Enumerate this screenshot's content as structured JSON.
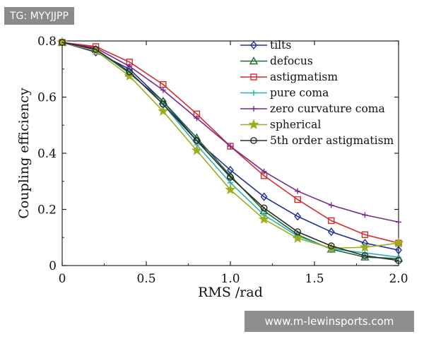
{
  "watermark": {
    "tag": "TG: MYYJJPP"
  },
  "banner": {
    "text": "www.m-lewinsports.com"
  },
  "chart_data": {
    "type": "line",
    "title": "",
    "xlabel": "RMS /rad",
    "ylabel": "Coupling efficiency",
    "xlim": [
      0,
      2.0
    ],
    "ylim": [
      0,
      0.8
    ],
    "xticks": [
      0,
      0.5,
      1.0,
      1.5,
      2.0
    ],
    "xtick_labels": [
      "0",
      "0.5",
      "1.0",
      "1.5",
      "2.0"
    ],
    "yticks": [
      0,
      0.2,
      0.4,
      0.6,
      0.8
    ],
    "ytick_labels": [
      "0",
      "0.2",
      "0.4",
      "0.6",
      "0.8"
    ],
    "grid": false,
    "legend_position": "top-right",
    "x": [
      0,
      0.2,
      0.4,
      0.6,
      0.8,
      1.0,
      1.2,
      1.4,
      1.6,
      1.8,
      2.0
    ],
    "series": [
      {
        "name": "tilts",
        "marker": "diamond",
        "color": "#1f2f9e",
        "values": [
          0.795,
          0.76,
          0.7,
          0.585,
          0.445,
          0.34,
          0.245,
          0.175,
          0.12,
          0.08,
          0.055
        ]
      },
      {
        "name": "defocus",
        "marker": "triangle",
        "color": "#1d6b2e",
        "values": [
          0.795,
          0.77,
          0.685,
          0.585,
          0.455,
          0.32,
          0.195,
          0.11,
          0.058,
          0.03,
          0.025
        ]
      },
      {
        "name": "astigmatism",
        "marker": "square",
        "color": "#d42a2a",
        "values": [
          0.795,
          0.78,
          0.725,
          0.645,
          0.54,
          0.425,
          0.32,
          0.235,
          0.16,
          0.11,
          0.08
        ]
      },
      {
        "name": "pure coma",
        "marker": "plus",
        "color": "#27b3b3",
        "values": [
          0.795,
          0.765,
          0.69,
          0.575,
          0.43,
          0.295,
          0.18,
          0.105,
          0.06,
          0.045,
          0.03
        ]
      },
      {
        "name": "zero curvature coma",
        "marker": "plus",
        "color": "#7a2a8e",
        "values": [
          0.795,
          0.775,
          0.71,
          0.625,
          0.525,
          0.425,
          0.335,
          0.265,
          0.215,
          0.18,
          0.155
        ]
      },
      {
        "name": "spherical",
        "marker": "star",
        "color": "#9aae1e",
        "values": [
          0.795,
          0.765,
          0.675,
          0.55,
          0.41,
          0.27,
          0.165,
          0.097,
          0.062,
          0.065,
          0.08
        ]
      },
      {
        "name": "5th order astigmatism",
        "marker": "circle",
        "color": "#2a2a2a",
        "values": [
          0.795,
          0.77,
          0.69,
          0.575,
          0.445,
          0.315,
          0.205,
          0.12,
          0.07,
          0.035,
          0.018
        ]
      }
    ]
  }
}
